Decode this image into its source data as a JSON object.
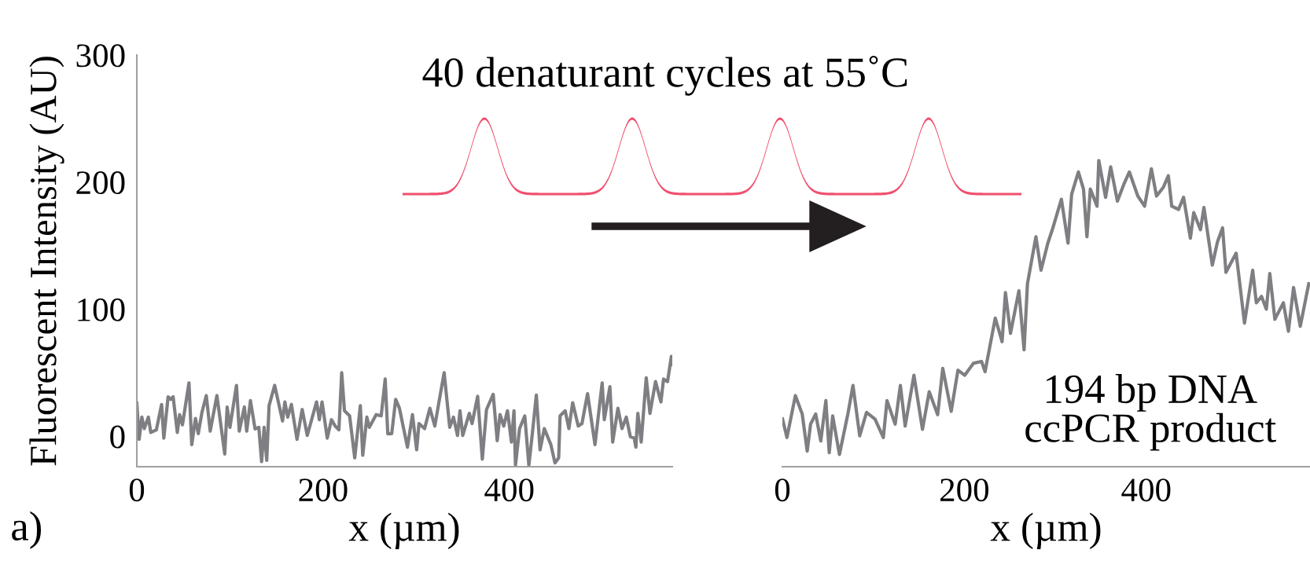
{
  "chart_data": [
    {
      "type": "line",
      "ylabel": "Fluorescent Intensity (AU)",
      "xlabel": "x (µm)",
      "xlim": [
        0,
        575
      ],
      "xticks": [
        0,
        200,
        400
      ],
      "ylim": [
        -24,
        300
      ],
      "yticks": [
        0,
        100,
        200,
        300
      ],
      "grid": false,
      "legend": false,
      "annotations": [
        "a)",
        "40 denaturant cycles at 55˚C"
      ],
      "series": [
        {
          "color": "#7f7f83",
          "x": [
            0,
            2.5,
            5.4,
            8,
            12.4,
            15,
            21,
            26.6,
            29,
            33.6,
            36.4,
            39,
            43.5,
            46,
            49,
            56,
            59,
            63,
            66,
            70,
            74.6,
            78.8,
            86,
            94.4,
            97,
            100,
            107,
            110,
            115.5,
            118,
            122,
            127,
            131,
            134,
            136.7,
            139.5,
            142,
            148,
            156.5,
            159,
            162,
            166,
            172,
            177.6,
            183,
            193,
            196,
            198.9,
            204.5,
            209,
            213,
            217,
            220,
            223,
            228.5,
            234,
            240,
            242.6,
            247,
            249.7,
            257,
            262.4,
            266.7,
            269.5,
            273.7,
            278,
            282,
            290.6,
            296,
            300.5,
            303,
            309,
            314.7,
            320,
            324,
            330,
            336,
            340,
            344.4,
            347,
            350,
            357,
            360,
            366,
            371,
            375.5,
            382.7,
            387,
            390,
            394,
            398,
            402.3,
            405,
            406.6,
            411,
            416.6,
            421,
            425,
            429,
            433,
            437.6,
            444.6,
            449,
            453,
            454.5,
            460,
            464,
            468,
            474,
            478,
            484,
            492,
            499.7,
            502,
            508,
            511,
            516.6,
            521,
            525.6,
            530,
            534,
            535.9,
            538,
            541.6,
            547,
            551,
            557,
            562.8,
            565.6,
            569.9,
            574,
            575
          ],
          "values": [
            26,
            -2.5,
            15,
            6,
            15,
            3,
            5,
            25,
            -1.5,
            31,
            29,
            31,
            3,
            17,
            9,
            42,
            -6.6,
            14,
            2,
            19,
            32,
            4,
            32,
            -14,
            23,
            7,
            40,
            4,
            23,
            4,
            28,
            5.7,
            7,
            -20,
            7,
            -19,
            24,
            40,
            12,
            27,
            15,
            25,
            -2.5,
            21,
            0.6,
            27,
            13,
            27,
            -1.5,
            13,
            8,
            5,
            50,
            20,
            16,
            -17,
            24,
            -15,
            15,
            7,
            17,
            16,
            45,
            1.9,
            2,
            29,
            22,
            -8.6,
            17,
            -10.7,
            10,
            6,
            22,
            8,
            25,
            50,
            7,
            15,
            0.6,
            20,
            0.6,
            18,
            10,
            31.4,
            -18,
            21,
            33,
            -3.5,
            17,
            8,
            20,
            -4.6,
            20,
            -23,
            6,
            16,
            -23,
            4,
            32.4,
            -10.7,
            6,
            -6.6,
            -21,
            -17,
            16,
            20,
            6,
            26.4,
            8,
            10,
            33.5,
            -6.6,
            42,
            13,
            39,
            -4.6,
            22,
            6,
            15,
            -0.4,
            -1.4,
            -8.6,
            18,
            -4.6,
            46,
            18,
            43,
            27,
            45,
            43,
            62.8,
            56.4
          ]
        }
      ]
    },
    {
      "type": "line",
      "xlabel": "x (µm)",
      "xlim": [
        0,
        580
      ],
      "xticks": [
        0,
        200,
        400
      ],
      "ylim": [
        -24,
        300
      ],
      "tick_labels": "x",
      "grid": false,
      "legend": false,
      "annotations": [
        "194 bp DNA\nccPCR product"
      ],
      "series": [
        {
          "color": "#7f7f83",
          "x": [
            0.15,
            5,
            14.3,
            21.8,
            27.3,
            31,
            36.6,
            42.2,
            47.8,
            51.5,
            55.3,
            62.7,
            72,
            77.6,
            85,
            92.5,
            101.8,
            111,
            115,
            124,
            129.7,
            135,
            144.6,
            154,
            161.4,
            170.7,
            176.3,
            185.6,
            193,
            200.5,
            210,
            219,
            222.8,
            234,
            241.5,
            245.2,
            250.8,
            260,
            265.7,
            269.4,
            278.7,
            284.3,
            291.8,
            297.4,
            306.7,
            314,
            318,
            325.4,
            331,
            334.8,
            338.5,
            345.9,
            347.8,
            355.3,
            360.9,
            368.3,
            375.8,
            381.4,
            390.7,
            398.2,
            405.6,
            411.3,
            418.7,
            424.3,
            428,
            435.5,
            441,
            448.5,
            452.2,
            459.6,
            463.4,
            472.6,
            478.3,
            483.9,
            487.6,
            498.8,
            508,
            517,
            521,
            526.7,
            532,
            535.8,
            541.4,
            550.7,
            556.3,
            561.9,
            569.3,
            578.6
          ],
          "values": [
            13.6,
            -1,
            32,
            17.5,
            -11.7,
            9.5,
            17.5,
            -3.7,
            28,
            -13,
            16,
            -14.4,
            17.5,
            40,
            0.3,
            18.8,
            13.5,
            -1,
            28,
            9.5,
            40,
            8,
            48,
            5.4,
            35,
            16.9,
            53.4,
            19.6,
            52,
            48,
            57.4,
            58.8,
            50.8,
            93,
            74.4,
            113,
            81,
            114.4,
            68,
            120,
            157,
            130.6,
            151.9,
            164,
            186.5,
            151.9,
            190.5,
            208,
            194.5,
            157,
            194.5,
            181,
            217,
            188,
            212,
            185,
            199,
            208,
            189,
            181,
            210.5,
            189,
            195.8,
            205,
            181,
            178.5,
            188,
            155.8,
            176,
            162.5,
            180,
            134.6,
            153,
            164,
            129,
            144,
            89,
            130.6,
            105,
            110,
            100,
            128,
            92,
            105,
            82.6,
            117,
            86.5,
            120
          ]
        }
      ]
    }
  ]
}
